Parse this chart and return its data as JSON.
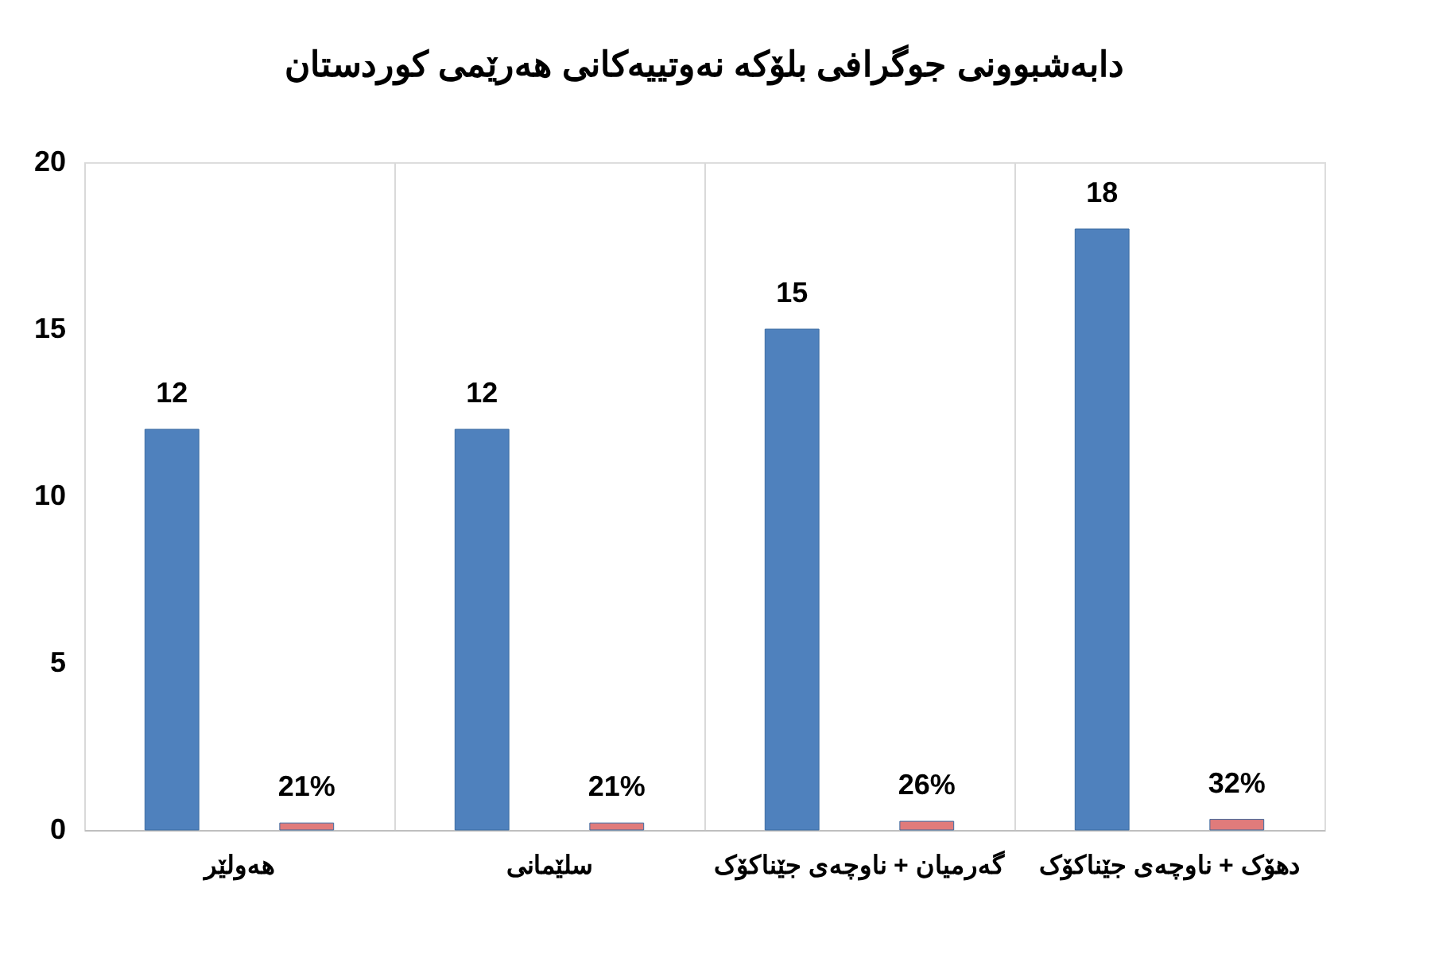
{
  "chart_data": {
    "type": "bar",
    "title": "دابەشبوونی جوگرافی بلۆکە نەوتییەکانی هەرێمی کوردستان",
    "categories": [
      "هەولێر",
      "سلێمانی",
      "گەرمیان + ناوچەی جێناکۆک",
      "دهۆک + ناوچەی جێناکۆک"
    ],
    "series": [
      {
        "color": "#4f81bd",
        "values": [
          12,
          12,
          15,
          18
        ],
        "value_labels": [
          "12",
          "12",
          "15",
          "18"
        ]
      },
      {
        "color": "#e07b7b",
        "values": [
          0.21,
          0.21,
          0.26,
          0.32
        ],
        "value_labels": [
          "21%",
          "21%",
          "26%",
          "32%"
        ]
      }
    ],
    "ylim": [
      0,
      20
    ],
    "yticks": [
      0,
      5,
      10,
      15,
      20
    ],
    "grid": "x",
    "legend": false
  }
}
